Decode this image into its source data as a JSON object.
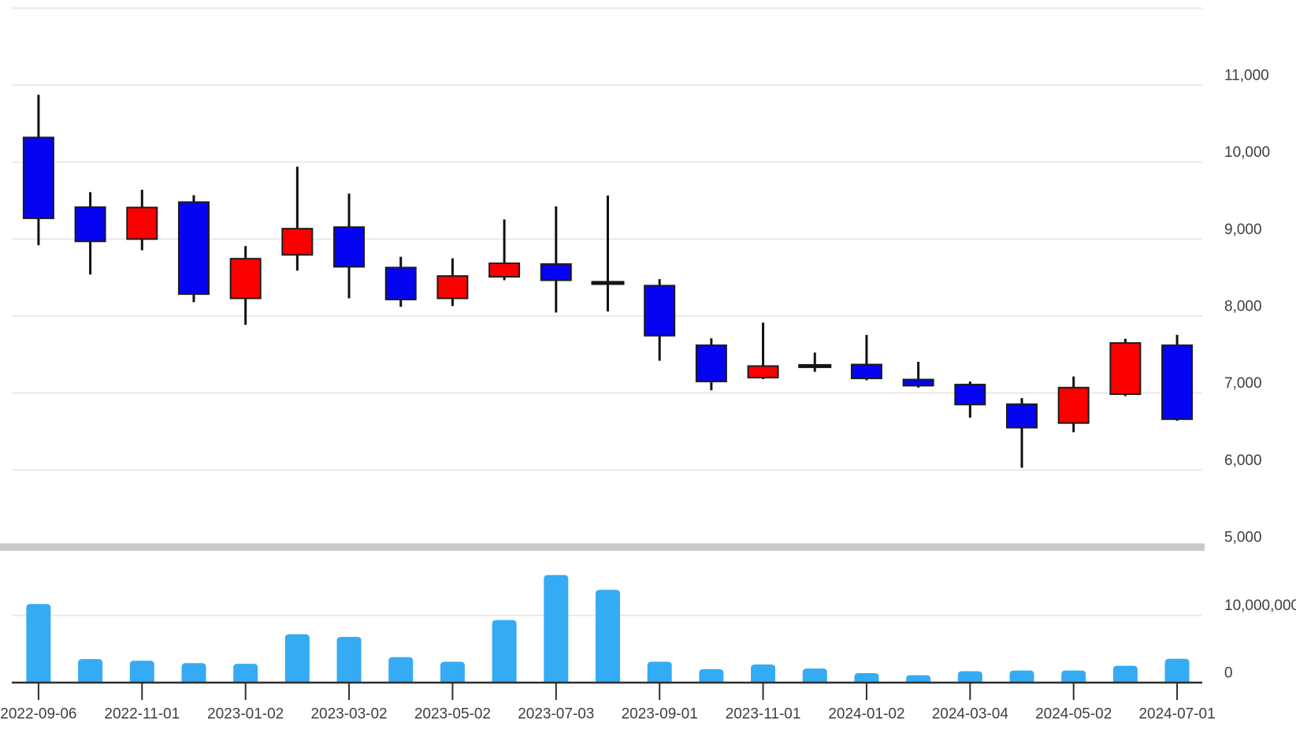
{
  "chart_data": {
    "type": "candlestick",
    "title": "",
    "description": "Monthly candlestick price chart with volume pane below. Red candles = up (close above open), blue candles = down (close below open), black cross = doji (open equals close). Light-blue rounded bars show volume.",
    "price_axis": {
      "side": "right",
      "min": 5000,
      "max": 12000,
      "ticks": [
        {
          "value": 11000,
          "label": "11,000"
        },
        {
          "value": 10000,
          "label": "10,000"
        },
        {
          "value": 9000,
          "label": "9,000"
        },
        {
          "value": 8000,
          "label": "8,000"
        },
        {
          "value": 7000,
          "label": "7,000"
        },
        {
          "value": 6000,
          "label": "6,000"
        },
        {
          "value": 5000,
          "label": "5,000"
        }
      ]
    },
    "volume_axis": {
      "side": "right",
      "min": 0,
      "max": 11000000,
      "ticks": [
        {
          "value": 10000000,
          "label": "10,000,000"
        },
        {
          "value": 0,
          "label": "0"
        }
      ]
    },
    "x_axis": {
      "tick_labels": [
        "2022-09-06",
        "2022-11-01",
        "2023-01-02",
        "2023-03-02",
        "2023-05-02",
        "2023-07-03",
        "2023-09-01",
        "2023-11-01",
        "2024-01-02",
        "2024-03-04",
        "2024-05-02",
        "2024-07-01"
      ],
      "tick_candle_indices": [
        0,
        2,
        4,
        6,
        8,
        10,
        12,
        14,
        16,
        18,
        20,
        22
      ]
    },
    "candles": [
      {
        "month": "2022-09",
        "direction": "down",
        "open": 10320,
        "high": 10875,
        "low": 8920,
        "close": 9270,
        "volume": 11700000
      },
      {
        "month": "2022-10",
        "direction": "down",
        "open": 9415,
        "high": 9610,
        "low": 8540,
        "close": 8970,
        "volume": 3500000
      },
      {
        "month": "2022-11",
        "direction": "up",
        "open": 9000,
        "high": 9640,
        "low": 8855,
        "close": 9410,
        "volume": 3250000
      },
      {
        "month": "2022-12",
        "direction": "down",
        "open": 9480,
        "high": 9570,
        "low": 8180,
        "close": 8285,
        "volume": 2900000
      },
      {
        "month": "2023-01",
        "direction": "up",
        "open": 8230,
        "high": 8910,
        "low": 7885,
        "close": 8745,
        "volume": 2800000
      },
      {
        "month": "2023-02",
        "direction": "up",
        "open": 8795,
        "high": 9940,
        "low": 8590,
        "close": 9135,
        "volume": 7200000
      },
      {
        "month": "2023-03",
        "direction": "down",
        "open": 9155,
        "high": 9590,
        "low": 8230,
        "close": 8640,
        "volume": 6800000
      },
      {
        "month": "2023-04",
        "direction": "down",
        "open": 8630,
        "high": 8770,
        "low": 8120,
        "close": 8215,
        "volume": 3800000
      },
      {
        "month": "2023-05",
        "direction": "up",
        "open": 8230,
        "high": 8750,
        "low": 8130,
        "close": 8520,
        "volume": 3100000
      },
      {
        "month": "2023-06",
        "direction": "up",
        "open": 8510,
        "high": 9255,
        "low": 8465,
        "close": 8685,
        "volume": 9300000
      },
      {
        "month": "2023-07",
        "direction": "down",
        "open": 8675,
        "high": 9425,
        "low": 8045,
        "close": 8465,
        "volume": 16000000
      },
      {
        "month": "2023-08",
        "direction": "doji",
        "open": 8430,
        "high": 9565,
        "low": 8060,
        "close": 8430,
        "volume": 13800000
      },
      {
        "month": "2023-09",
        "direction": "down",
        "open": 8395,
        "high": 8480,
        "low": 7420,
        "close": 7745,
        "volume": 3100000
      },
      {
        "month": "2023-10",
        "direction": "down",
        "open": 7620,
        "high": 7710,
        "low": 7035,
        "close": 7150,
        "volume": 2000000
      },
      {
        "month": "2023-11",
        "direction": "up",
        "open": 7200,
        "high": 7915,
        "low": 7180,
        "close": 7350,
        "volume": 2700000
      },
      {
        "month": "2023-12",
        "direction": "doji",
        "open": 7350,
        "high": 7525,
        "low": 7275,
        "close": 7350,
        "volume": 2100000
      },
      {
        "month": "2024-01",
        "direction": "down",
        "open": 7370,
        "high": 7755,
        "low": 7165,
        "close": 7190,
        "volume": 1400000
      },
      {
        "month": "2024-02",
        "direction": "down",
        "open": 7175,
        "high": 7405,
        "low": 7070,
        "close": 7095,
        "volume": 1100000
      },
      {
        "month": "2024-03",
        "direction": "down",
        "open": 7110,
        "high": 7150,
        "low": 6680,
        "close": 6850,
        "volume": 1700000
      },
      {
        "month": "2024-04",
        "direction": "down",
        "open": 6855,
        "high": 6935,
        "low": 6030,
        "close": 6550,
        "volume": 1800000
      },
      {
        "month": "2024-05",
        "direction": "up",
        "open": 6610,
        "high": 7215,
        "low": 6490,
        "close": 7070,
        "volume": 1800000
      },
      {
        "month": "2024-06",
        "direction": "up",
        "open": 6985,
        "high": 7705,
        "low": 6960,
        "close": 7650,
        "volume": 2500000
      },
      {
        "month": "2024-07",
        "direction": "down",
        "open": 7620,
        "high": 7755,
        "low": 6640,
        "close": 6660,
        "volume": 3550000
      }
    ],
    "legend": null,
    "grid": true,
    "colors": {
      "up_candle": "#fb0000",
      "down_candle": "#0404f2",
      "doji": "#141414",
      "candle_border": "#1c1c1c",
      "wick": "#111111",
      "volume_bar": "#35abf3",
      "gridline": "#e9e9e9",
      "pane_separator": "#c9c9c9",
      "axis_line": "#2e2e2e",
      "label_text": "#3e3e3e"
    }
  }
}
